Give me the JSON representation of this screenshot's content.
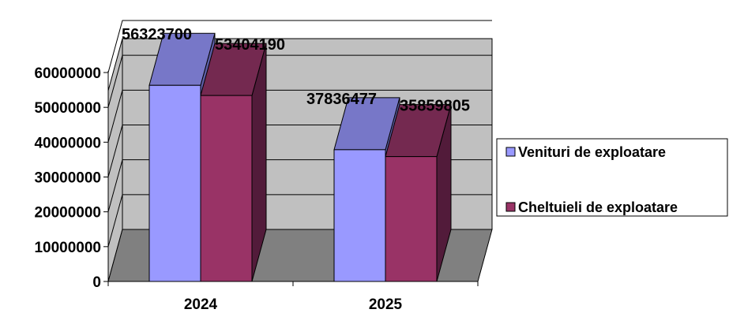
{
  "chart_data": {
    "type": "bar",
    "title": "",
    "xlabel": "",
    "ylabel": "",
    "categories": [
      "2024",
      "2025"
    ],
    "series": [
      {
        "name": "Venituri de exploatare",
        "values": [
          56323700,
          37836477
        ],
        "color": "#9999FF",
        "top_color": "#7777C8",
        "side_color": "#5E5EA8"
      },
      {
        "name": "Cheltuieli de exploatare",
        "values": [
          53404190,
          35859805
        ],
        "color": "#993366",
        "top_color": "#742950",
        "side_color": "#521B3A"
      }
    ],
    "data_labels": [
      [
        "56323700",
        "37836477"
      ],
      [
        "53404190",
        "35859805"
      ]
    ],
    "ylim": [
      0,
      60000000
    ],
    "yticks": [
      0,
      10000000,
      20000000,
      30000000,
      40000000,
      50000000,
      60000000
    ],
    "ytick_labels": [
      "0",
      "10000000",
      "20000000",
      "30000000",
      "40000000",
      "50000000",
      "60000000"
    ],
    "grid": true,
    "legend_position": "right",
    "wall_color": "#C0C0C0",
    "floor_color": "#808080"
  }
}
